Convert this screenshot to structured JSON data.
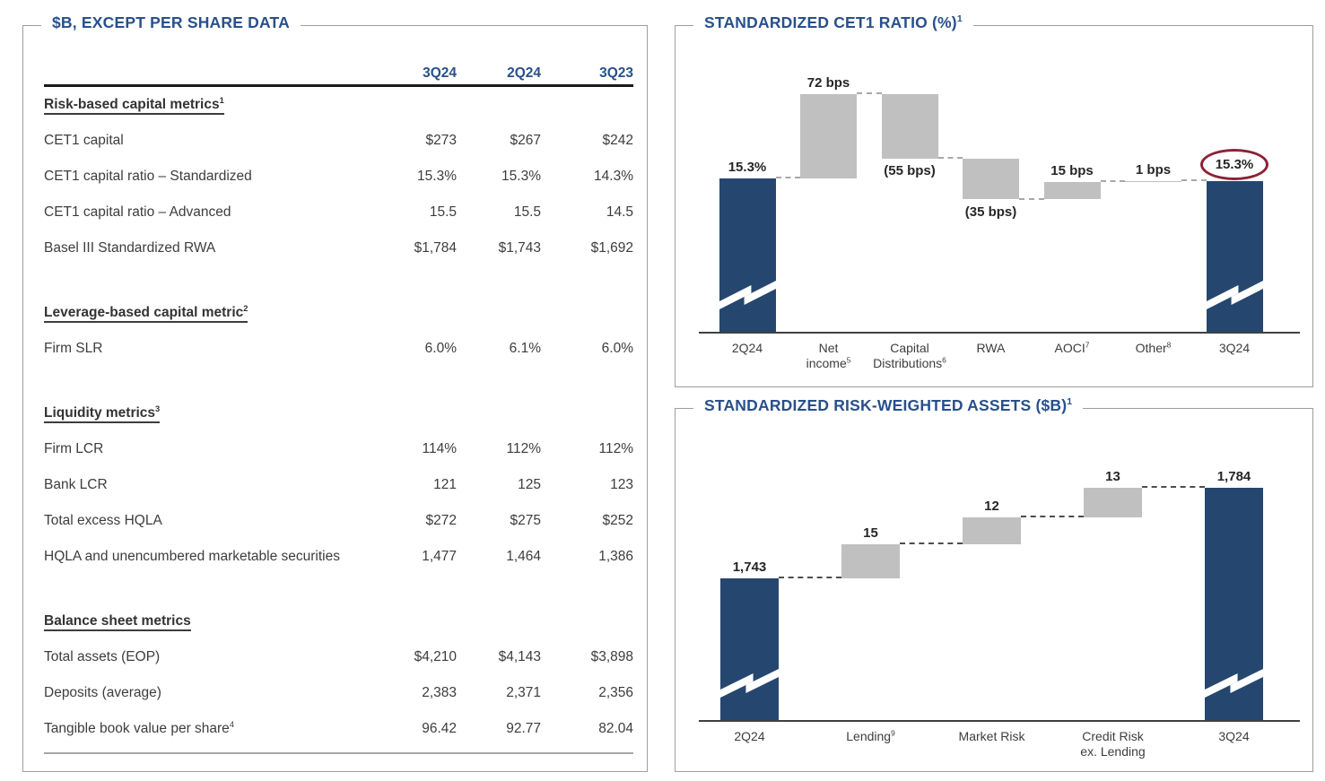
{
  "colors": {
    "title_navy": "#28508c",
    "bar_navy": "#25476f",
    "bar_gray": "#c0c0c0",
    "highlight_maroon": "#8c2337",
    "body_text": "#3d3d3d"
  },
  "left_panel": {
    "title": "$B, EXCEPT PER SHARE DATA",
    "columns": [
      "3Q24",
      "2Q24",
      "3Q23"
    ],
    "rows": [
      {
        "type": "section",
        "label": "Risk-based capital metrics",
        "sup": "1"
      },
      {
        "type": "row",
        "label": "CET1 capital",
        "values": [
          "$273",
          "$267",
          "$242"
        ]
      },
      {
        "type": "row",
        "label": "CET1 capital ratio – Standardized",
        "values": [
          "15.3%",
          "15.3%",
          "14.3%"
        ]
      },
      {
        "type": "row",
        "label": "CET1 capital ratio – Advanced",
        "values": [
          "15.5",
          "15.5",
          "14.5"
        ]
      },
      {
        "type": "row",
        "label": "Basel III Standardized RWA",
        "values": [
          "$1,784",
          "$1,743",
          "$1,692"
        ]
      },
      {
        "type": "spacer"
      },
      {
        "type": "section",
        "label": "Leverage-based capital metric",
        "sup": "2"
      },
      {
        "type": "row",
        "label": "Firm SLR",
        "values": [
          "6.0%",
          "6.1%",
          "6.0%"
        ]
      },
      {
        "type": "spacer"
      },
      {
        "type": "section",
        "label": "Liquidity metrics",
        "sup": "3"
      },
      {
        "type": "row",
        "label": "Firm LCR",
        "values": [
          "114%",
          "112%",
          "112%"
        ]
      },
      {
        "type": "row",
        "label": "Bank LCR",
        "values": [
          "121",
          "125",
          "123"
        ]
      },
      {
        "type": "row",
        "label": "Total excess HQLA",
        "values": [
          "$272",
          "$275",
          "$252"
        ]
      },
      {
        "type": "row",
        "label": "HQLA and unencumbered marketable securities",
        "values": [
          "1,477",
          "1,464",
          "1,386"
        ]
      },
      {
        "type": "spacer"
      },
      {
        "type": "section",
        "label": "Balance sheet metrics",
        "sup": ""
      },
      {
        "type": "row",
        "label": "Total assets (EOP)",
        "values": [
          "$4,210",
          "$4,143",
          "$3,898"
        ]
      },
      {
        "type": "row",
        "label": "Deposits (average)",
        "values": [
          "2,383",
          "2,371",
          "2,356"
        ]
      },
      {
        "type": "row",
        "label": "Tangible book value per share",
        "sup": "4",
        "values": [
          "96.42",
          "92.77",
          "82.04"
        ]
      }
    ]
  },
  "chart_data": [
    {
      "type": "waterfall",
      "title": "STANDARDIZED CET1 RATIO (%)",
      "title_sup": "1",
      "unit": "endpoints in %, deltas in bps",
      "bars": [
        {
          "category": "2Q24",
          "cat_lines": [
            "2Q24"
          ],
          "kind": "start",
          "value": 15.3,
          "display": "15.3%"
        },
        {
          "category": "Net income",
          "cat_lines": [
            "Net",
            "income"
          ],
          "cat_sup": "5",
          "kind": "delta",
          "value": 72,
          "display": "72 bps",
          "label_side": "above"
        },
        {
          "category": "Capital Distributions",
          "cat_lines": [
            "Capital",
            "Distributions"
          ],
          "cat_sup": "6",
          "kind": "delta",
          "value": -55,
          "display": "(55 bps)",
          "label_side": "below"
        },
        {
          "category": "RWA",
          "cat_lines": [
            "RWA"
          ],
          "kind": "delta",
          "value": -35,
          "display": "(35 bps)",
          "label_side": "below"
        },
        {
          "category": "AOCI",
          "cat_lines": [
            "AOCI"
          ],
          "cat_sup": "7",
          "kind": "delta",
          "value": 15,
          "display": "15 bps",
          "label_side": "above"
        },
        {
          "category": "Other",
          "cat_lines": [
            "Other"
          ],
          "cat_sup": "8",
          "kind": "delta",
          "value": 1,
          "display": "1 bps",
          "label_side": "above"
        },
        {
          "category": "3Q24",
          "cat_lines": [
            "3Q24"
          ],
          "kind": "end",
          "value": 15.3,
          "display": "15.3%",
          "circled": true
        }
      ]
    },
    {
      "type": "waterfall",
      "title": "STANDARDIZED RISK-WEIGHTED ASSETS ($B)",
      "title_sup": "1",
      "unit": "$B",
      "bars": [
        {
          "category": "2Q24",
          "cat_lines": [
            "2Q24"
          ],
          "kind": "start",
          "value": 1743,
          "display": "1,743"
        },
        {
          "category": "Lending",
          "cat_lines": [
            "Lending"
          ],
          "cat_sup": "9",
          "kind": "delta",
          "value": 15,
          "display": "15",
          "label_side": "above"
        },
        {
          "category": "Market Risk",
          "cat_lines": [
            "Market Risk"
          ],
          "kind": "delta",
          "value": 12,
          "display": "12",
          "label_side": "above"
        },
        {
          "category": "Credit Risk ex. Lending",
          "cat_lines": [
            "Credit Risk",
            "ex. Lending"
          ],
          "kind": "delta",
          "value": 13,
          "display": "13",
          "label_side": "above"
        },
        {
          "category": "3Q24",
          "cat_lines": [
            "3Q24"
          ],
          "kind": "end",
          "value": 1784,
          "display": "1,784"
        }
      ]
    }
  ]
}
